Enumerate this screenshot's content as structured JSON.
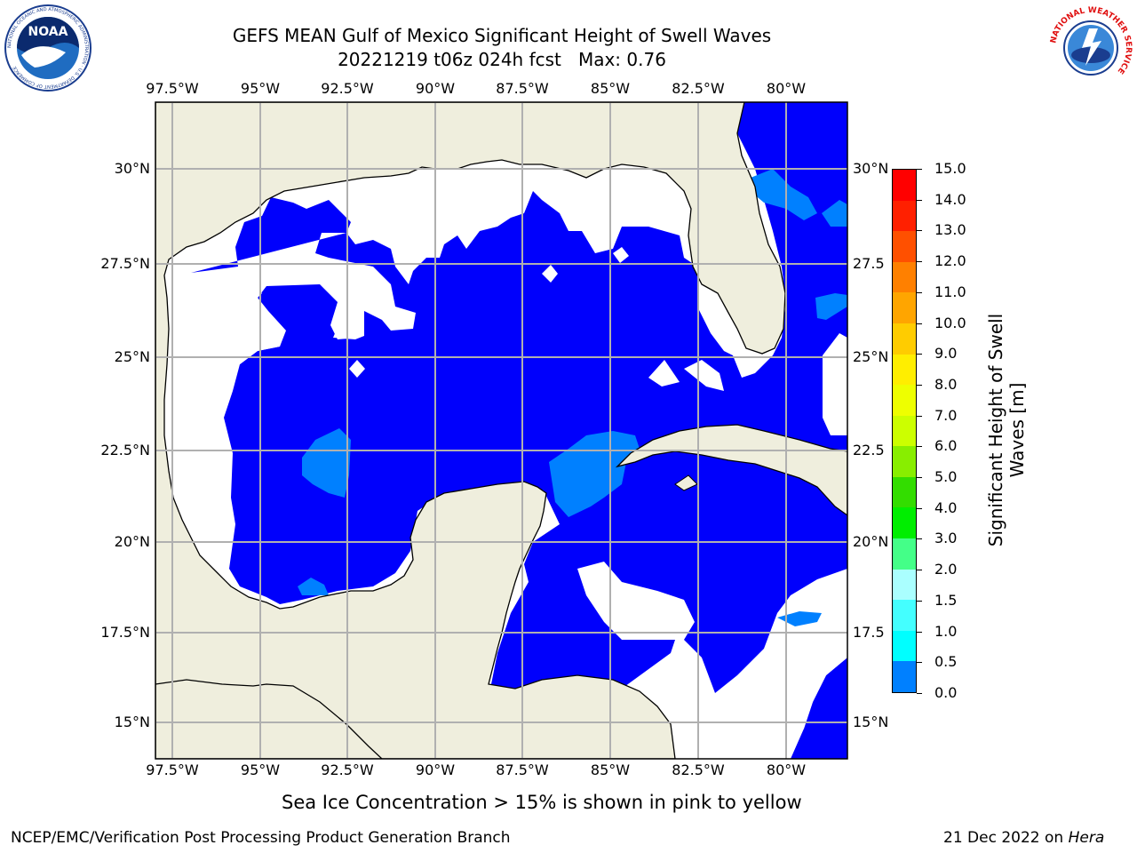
{
  "title": {
    "line1": "GEFS MEAN Gulf of Mexico Significant Height of Swell Waves",
    "line2": "20221219 t06z 024h fcst   Max: 0.76"
  },
  "map": {
    "lon_ticks": [
      "97.5°W",
      "95°W",
      "92.5°W",
      "90°W",
      "87.5°W",
      "85°W",
      "82.5°W",
      "80°W"
    ],
    "lat_ticks_left": [
      "30°N",
      "27.5°N",
      "25°N",
      "22.5°N",
      "20°N",
      "17.5°N",
      "15°N"
    ],
    "lat_ticks_right": [
      "30°N",
      "27.5",
      "25°N",
      "22.5",
      "20°N",
      "17.5",
      "15°N"
    ],
    "colors": {
      "land": "#efeedd",
      "ocean_low": "#0000fc",
      "ocean_mid": "#0080ff",
      "grid": "#b0b0b0"
    }
  },
  "colorbar": {
    "label": "Significant Height of Swell Waves [m]",
    "label_line1": "Significant Height of Swell",
    "label_line2": "Waves [m]",
    "tick_labels": [
      "15.0",
      "14.0",
      "13.0",
      "12.0",
      "11.0",
      "10.0",
      "9.0",
      "8.0",
      "7.0",
      "6.0",
      "5.0",
      "4.0",
      "3.0",
      "2.0",
      "1.5",
      "1.0",
      "0.5",
      "0.0"
    ],
    "colors": [
      "#ff0000",
      "#ff2000",
      "#ff5000",
      "#ff8000",
      "#ffa500",
      "#ffcc00",
      "#ffee00",
      "#eeff00",
      "#ccff00",
      "#88ee00",
      "#33dd00",
      "#00ee00",
      "#44ff88",
      "#aaffff",
      "#44ffff",
      "#00ffff",
      "#0080ff",
      "#0000ff"
    ]
  },
  "logos": {
    "noaa": {
      "text": "NOAA",
      "ring_text": "NATIONAL OCEANIC AND ATMOSPHERIC ADMINISTRATION · U.S. DEPARTMENT OF COMMERCE"
    },
    "nws": {
      "ring_text": "NATIONAL WEATHER SERVICE"
    }
  },
  "notes": {
    "sea_ice": "Sea Ice Concentration > 15% is shown in pink to yellow"
  },
  "footer": {
    "left": "NCEP/EMC/Verification Post Processing Product Generation Branch",
    "date": "21 Dec 2022 on ",
    "machine": "Hera"
  }
}
